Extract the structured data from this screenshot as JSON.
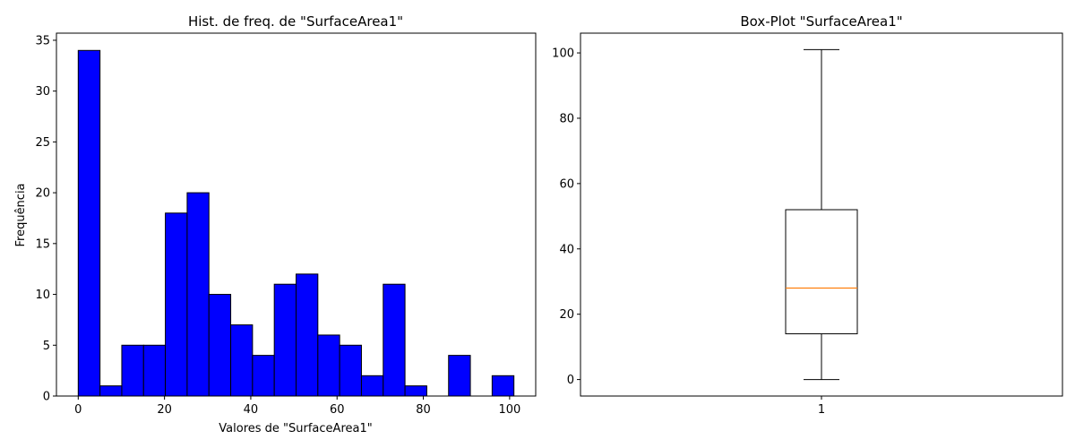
{
  "chart_data": [
    {
      "type": "bar",
      "subtype": "histogram",
      "title": "Hist. de freq. de \"SurfaceArea1\"",
      "xlabel": "Valores de \"SurfaceArea1\"",
      "ylabel": "Frequência",
      "bin_edges": [
        0,
        5.05,
        10.1,
        15.15,
        20.2,
        25.25,
        30.3,
        35.35,
        40.4,
        45.45,
        50.5,
        55.55,
        60.6,
        65.65,
        70.7,
        75.75,
        80.8,
        85.85,
        90.9,
        95.95,
        101
      ],
      "values": [
        34,
        1,
        5,
        5,
        18,
        20,
        10,
        7,
        4,
        11,
        12,
        6,
        5,
        2,
        11,
        1,
        0,
        4,
        0,
        2
      ],
      "xlim": [
        -5.05,
        106.05
      ],
      "ylim": [
        0,
        35.7
      ],
      "xticks": [
        0,
        20,
        40,
        60,
        80,
        100
      ],
      "yticks": [
        0,
        5,
        10,
        15,
        20,
        25,
        30,
        35
      ],
      "colors": {
        "fill": "#0000ff",
        "edge": "#000000"
      }
    },
    {
      "type": "box",
      "title": "Box-Plot \"SurfaceArea1\"",
      "categories": [
        "1"
      ],
      "box": {
        "whisker_low": 0,
        "q1": 14,
        "median": 28,
        "q3": 52,
        "whisker_high": 101
      },
      "ylim": [
        -5.05,
        106.05
      ],
      "yticks": [
        0,
        20,
        40,
        60,
        80,
        100
      ],
      "colors": {
        "box": "#000000",
        "median": "#ff7f0e"
      }
    }
  ]
}
